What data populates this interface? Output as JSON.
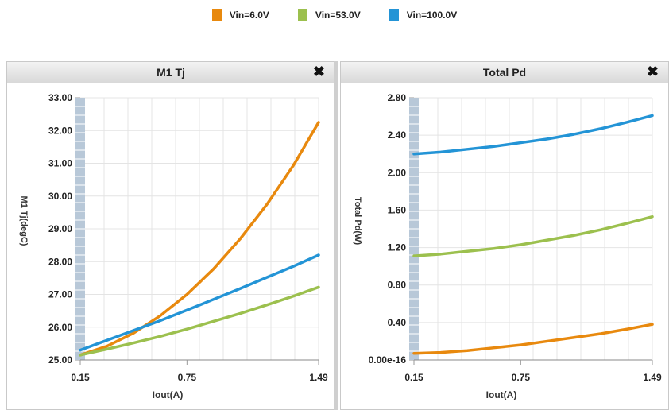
{
  "legend": [
    {
      "label": "Vin=6.0V",
      "color": "#e8890e"
    },
    {
      "label": "Vin=53.0V",
      "color": "#9cc04e"
    },
    {
      "label": "Vin=100.0V",
      "color": "#2394d6"
    }
  ],
  "panels": [
    {
      "title": "M1 Tj",
      "close": "✖"
    },
    {
      "title": "Total Pd",
      "close": "✖"
    }
  ],
  "chart_data": [
    {
      "type": "line",
      "title": "M1 Tj",
      "xlabel": "Iout(A)",
      "ylabel": "M1 Tj(degC)",
      "xlim": [
        0.15,
        1.49
      ],
      "ylim": [
        25.0,
        33.0
      ],
      "xticks": [
        "0.15",
        "0.75",
        "1.49"
      ],
      "yticks": [
        "25.00",
        "26.00",
        "27.00",
        "28.00",
        "29.00",
        "30.00",
        "31.00",
        "32.00",
        "33.00"
      ],
      "grid": true,
      "x": [
        0.15,
        0.3,
        0.45,
        0.6,
        0.75,
        0.9,
        1.05,
        1.2,
        1.35,
        1.49
      ],
      "series": [
        {
          "name": "Vin=6.0V",
          "color": "#e8890e",
          "values": [
            25.15,
            25.42,
            25.82,
            26.35,
            27.0,
            27.78,
            28.7,
            29.75,
            30.95,
            32.25
          ]
        },
        {
          "name": "Vin=53.0V",
          "color": "#9cc04e",
          "values": [
            25.15,
            25.33,
            25.52,
            25.72,
            25.94,
            26.18,
            26.42,
            26.68,
            26.95,
            27.22
          ]
        },
        {
          "name": "Vin=100.0V",
          "color": "#2394d6",
          "values": [
            25.3,
            25.6,
            25.9,
            26.2,
            26.52,
            26.85,
            27.18,
            27.52,
            27.86,
            28.2
          ]
        }
      ]
    },
    {
      "type": "line",
      "title": "Total Pd",
      "xlabel": "Iout(A)",
      "ylabel": "Total Pd(W)",
      "xlim": [
        0.15,
        1.49
      ],
      "ylim": [
        0.0,
        2.8
      ],
      "xticks": [
        "0.15",
        "0.75",
        "1.49"
      ],
      "yticks": [
        "0.00e-16",
        "0.40",
        "0.80",
        "1.20",
        "1.60",
        "2.00",
        "2.40",
        "2.80"
      ],
      "grid": true,
      "x": [
        0.15,
        0.3,
        0.45,
        0.6,
        0.75,
        0.9,
        1.05,
        1.2,
        1.35,
        1.49
      ],
      "series": [
        {
          "name": "Vin=6.0V",
          "color": "#e8890e",
          "values": [
            0.07,
            0.08,
            0.1,
            0.13,
            0.16,
            0.2,
            0.24,
            0.28,
            0.33,
            0.38
          ]
        },
        {
          "name": "Vin=53.0V",
          "color": "#9cc04e",
          "values": [
            1.11,
            1.13,
            1.16,
            1.19,
            1.23,
            1.28,
            1.33,
            1.39,
            1.46,
            1.53
          ]
        },
        {
          "name": "Vin=100.0V",
          "color": "#2394d6",
          "values": [
            2.2,
            2.22,
            2.25,
            2.28,
            2.32,
            2.36,
            2.41,
            2.47,
            2.54,
            2.61
          ]
        }
      ]
    }
  ]
}
